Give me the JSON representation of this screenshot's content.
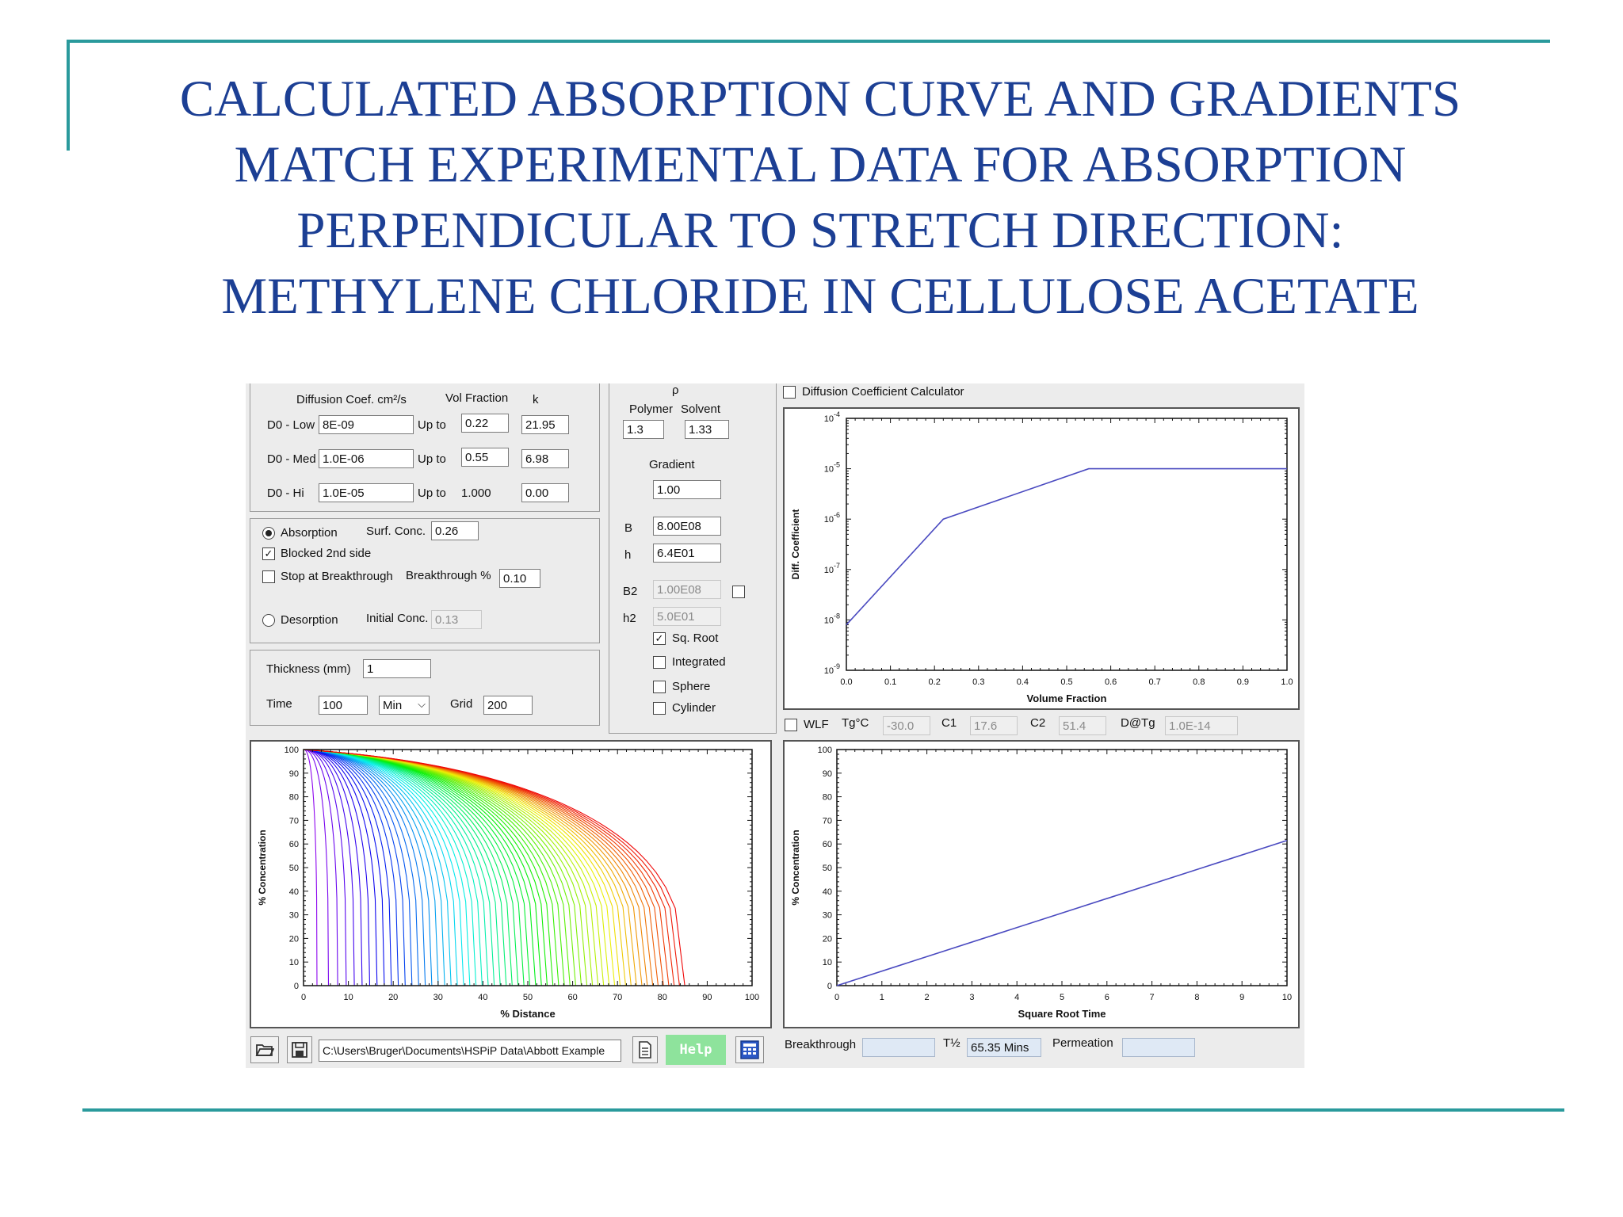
{
  "slide": {
    "title_lines": [
      "CALCULATED ABSORPTION CURVE AND GRADIENTS",
      "MATCH EXPERIMENTAL DATA FOR ABSORPTION",
      "PERPENDICULAR TO STRETCH DIRECTION:",
      "METHYLENE CHLORIDE IN CELLULOSE ACETATE"
    ],
    "accent_color": "#2a9a9c",
    "title_color": "#1c3f94"
  },
  "diffusion": {
    "header_coef": "Diffusion Coef. cm²/s",
    "header_vol": "Vol Fraction",
    "header_k": "k",
    "rows": [
      {
        "label": "D0 - Low",
        "coef": "8E-09",
        "upto": "Up to",
        "vol": "0.22",
        "k": "21.95"
      },
      {
        "label": "D0 - Med",
        "coef": "1.0E-06",
        "upto": "Up to",
        "vol": "0.55",
        "k": "6.98"
      },
      {
        "label": "D0 - Hi",
        "coef": "1.0E-05",
        "upto": "Up to",
        "vol": "1.000",
        "k": "0.00"
      }
    ]
  },
  "mode": {
    "absorption_label": "Absorption",
    "absorption_selected": true,
    "surf_conc_label": "Surf. Conc.",
    "surf_conc": "0.26",
    "blocked_label": "Blocked 2nd side",
    "blocked_checked": true,
    "stop_label": "Stop at Breakthrough",
    "stop_checked": false,
    "breakthrough_pct_label": "Breakthrough %",
    "breakthrough_pct": "0.10",
    "desorption_label": "Desorption",
    "desorption_selected": false,
    "initial_conc_label": "Initial Conc.",
    "initial_conc": "0.13"
  },
  "geometry": {
    "thickness_label": "Thickness (mm)",
    "thickness": "1",
    "time_label": "Time",
    "time": "100",
    "unit": "Min",
    "grid_label": "Grid",
    "grid": "200"
  },
  "density": {
    "rho": "ρ",
    "polymer_label": "Polymer",
    "solvent_label": "Solvent",
    "polymer": "1.3",
    "solvent": "1.33",
    "gradient_label": "Gradient",
    "gradient": "1.00",
    "b_label": "B",
    "b": "8.00E08",
    "h_label": "h",
    "h": "6.4E01",
    "b2_label": "B2",
    "b2": "1.00E08",
    "h2_label": "h2",
    "h2": "5.0E01",
    "options": [
      {
        "label": "Sq. Root",
        "checked": true
      },
      {
        "label": "Integrated",
        "checked": false
      },
      {
        "label": "Sphere",
        "checked": false
      },
      {
        "label": "Cylinder",
        "checked": false
      }
    ]
  },
  "calculator": {
    "label": "Diffusion Coefficient Calculator",
    "checked": false
  },
  "wlf": {
    "label": "WLF",
    "tg_label": "Tg°C",
    "tg": "-30.0",
    "c1_label": "C1",
    "c1": "17.6",
    "c2_label": "C2",
    "c2": "51.4",
    "dtg_label": "D@Tg",
    "dtg": "1.0E-14"
  },
  "footer": {
    "path": "C:\\Users\\Bruger\\Documents\\HSPiP Data\\Abbott Example",
    "help_label": "Help",
    "breakthrough_label": "Breakthrough",
    "breakthrough": "",
    "thalf_label": "T½",
    "thalf": "65.35 Mins",
    "permeation_label": "Permeation",
    "permeation": ""
  },
  "icons": [
    "open-folder-icon",
    "save-icon",
    "document-icon",
    "calculator-icon"
  ],
  "chart_data": [
    {
      "type": "line",
      "name": "diffusion-coefficient",
      "xlabel": "Volume Fraction",
      "ylabel": "Diff. Coefficient",
      "xlim": [
        0,
        1
      ],
      "ylim": [
        1e-09,
        0.0001
      ],
      "yscale": "log",
      "x_ticks": [
        "0.0",
        "0.1",
        "0.2",
        "0.3",
        "0.4",
        "0.5",
        "0.6",
        "0.7",
        "0.8",
        "0.9",
        "1.0"
      ],
      "y_ticks": [
        "10-9",
        "10-8",
        "10-7",
        "10-6",
        "10-5",
        "10-4"
      ],
      "x": [
        0,
        0.22,
        0.55,
        1.0
      ],
      "y": [
        8e-09,
        1e-06,
        1e-05,
        1e-05
      ],
      "color": "#4a4ac0"
    },
    {
      "type": "line",
      "name": "concentration-profiles",
      "xlabel": "% Distance",
      "ylabel": "% Concentration",
      "xlim": [
        0,
        100
      ],
      "ylim": [
        0,
        100
      ],
      "x_ticks": [
        "0",
        "10",
        "20",
        "30",
        "40",
        "50",
        "60",
        "70",
        "80",
        "90",
        "100"
      ],
      "y_ticks": [
        "0",
        "10",
        "20",
        "30",
        "40",
        "50",
        "60",
        "70",
        "80",
        "90",
        "100"
      ],
      "series_count": 60,
      "front_range": [
        3,
        85
      ],
      "color_scale": "violet-blue-cyan-green-yellow-red"
    },
    {
      "type": "line",
      "name": "uptake-curve",
      "xlabel": "Square Root Time",
      "ylabel": "% Concentration",
      "xlim": [
        0,
        10
      ],
      "ylim": [
        0,
        100
      ],
      "x_ticks": [
        "0",
        "1",
        "2",
        "3",
        "4",
        "5",
        "6",
        "7",
        "8",
        "9",
        "10"
      ],
      "y_ticks": [
        "0",
        "10",
        "20",
        "30",
        "40",
        "50",
        "60",
        "70",
        "80",
        "90",
        "100"
      ],
      "x": [
        0,
        10
      ],
      "y": [
        0,
        61.5
      ],
      "color": "#4a4ac0"
    }
  ]
}
